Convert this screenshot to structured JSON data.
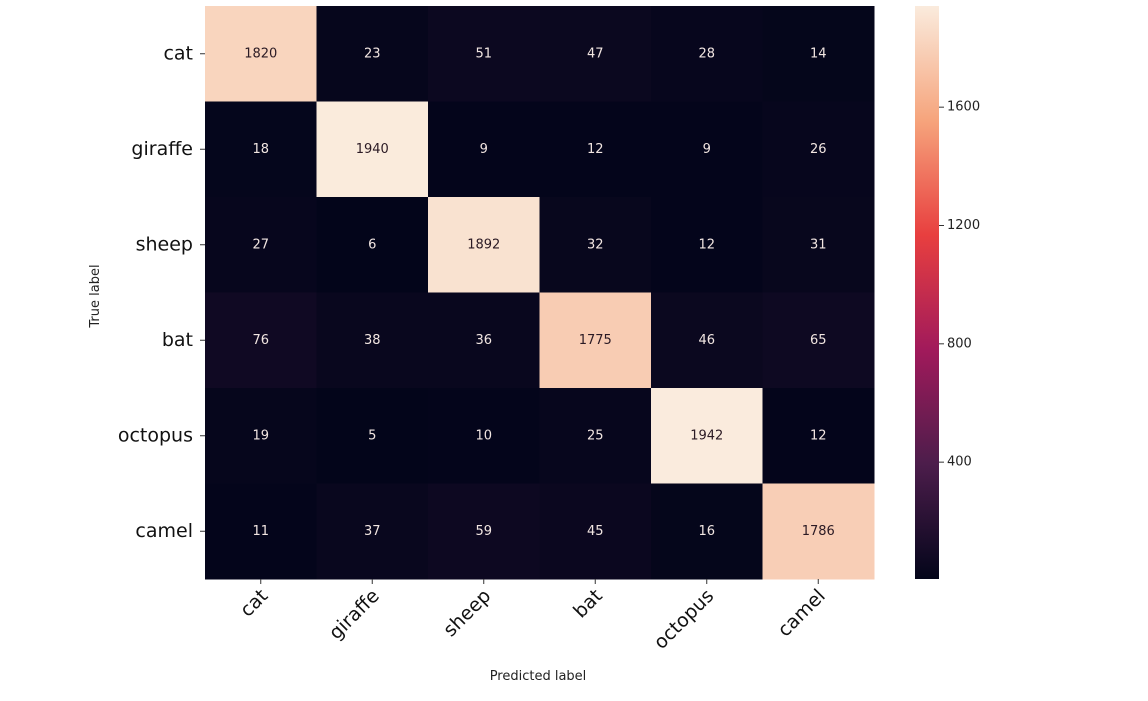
{
  "chart_data": {
    "type": "heatmap",
    "title": "",
    "xlabel": "Predicted label",
    "ylabel": "True label",
    "rows": [
      "cat",
      "giraffe",
      "sheep",
      "bat",
      "octopus",
      "camel"
    ],
    "cols": [
      "cat",
      "giraffe",
      "sheep",
      "bat",
      "octopus",
      "camel"
    ],
    "values": [
      [
        1820,
        23,
        51,
        47,
        28,
        14
      ],
      [
        18,
        1940,
        9,
        12,
        9,
        26
      ],
      [
        27,
        6,
        1892,
        32,
        12,
        31
      ],
      [
        76,
        38,
        36,
        1775,
        46,
        65
      ],
      [
        19,
        5,
        10,
        25,
        1942,
        12
      ],
      [
        11,
        37,
        59,
        45,
        16,
        1786
      ]
    ],
    "colormap": "rocket",
    "vmin": 5,
    "vmax": 1942,
    "colorbar_ticks": [
      400,
      800,
      1200,
      1600
    ],
    "annotation_colors": {
      "on_dark": "#f2e6e2",
      "on_light": "#2b1a24"
    }
  }
}
